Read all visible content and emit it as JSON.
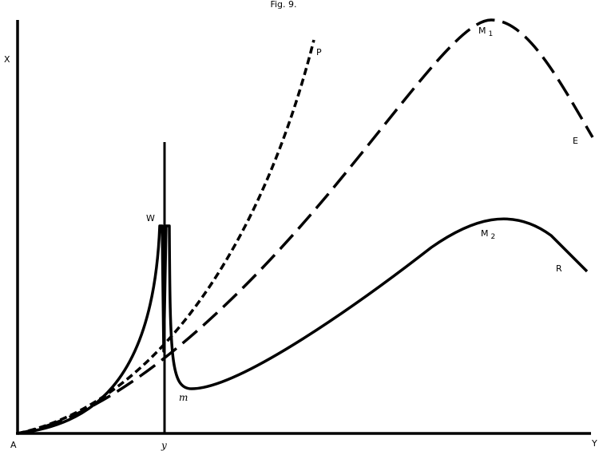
{
  "title": "Fig. 9.",
  "axes": {
    "vertical": "X",
    "horizontal": "Y",
    "origin": "A",
    "marker": "y"
  },
  "curves": {
    "solid": {
      "start": "W",
      "minimum": "m",
      "peak": {
        "text": "M",
        "sub": "2"
      },
      "end": "R"
    },
    "short_dashed": {
      "end": "P"
    },
    "long_dashed": {
      "peak": {
        "text": "M",
        "sub": "1"
      },
      "end": "E"
    }
  }
}
